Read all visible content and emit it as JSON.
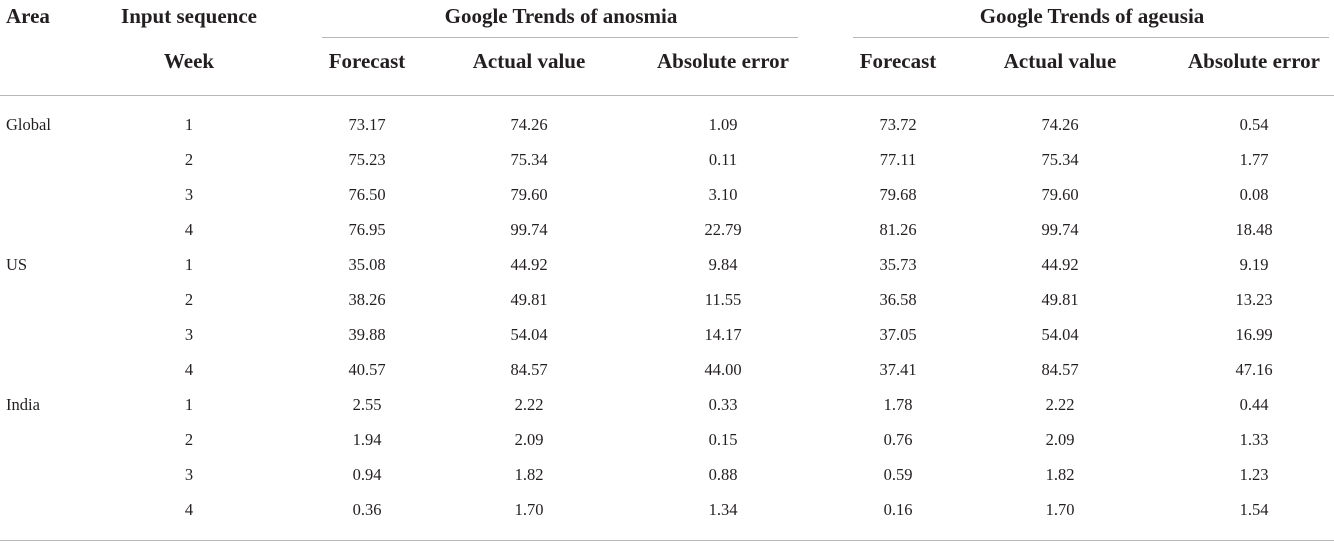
{
  "headers": {
    "area": "Area",
    "input_sequence": "Input sequence",
    "week": "Week",
    "anosmia_group": "Google Trends of anosmia",
    "ageusia_group": "Google Trends of ageusia",
    "forecast": "Forecast",
    "actual_value": "Actual value",
    "absolute_error": "Absolute error"
  },
  "rows": [
    {
      "area": "Global",
      "week": "1",
      "anosmia": [
        "73.17",
        "74.26",
        "1.09"
      ],
      "ageusia": [
        "73.72",
        "74.26",
        "0.54"
      ]
    },
    {
      "area": "",
      "week": "2",
      "anosmia": [
        "75.23",
        "75.34",
        "0.11"
      ],
      "ageusia": [
        "77.11",
        "75.34",
        "1.77"
      ]
    },
    {
      "area": "",
      "week": "3",
      "anosmia": [
        "76.50",
        "79.60",
        "3.10"
      ],
      "ageusia": [
        "79.68",
        "79.60",
        "0.08"
      ]
    },
    {
      "area": "",
      "week": "4",
      "anosmia": [
        "76.95",
        "99.74",
        "22.79"
      ],
      "ageusia": [
        "81.26",
        "99.74",
        "18.48"
      ]
    },
    {
      "area": "US",
      "week": "1",
      "anosmia": [
        "35.08",
        "44.92",
        "9.84"
      ],
      "ageusia": [
        "35.73",
        "44.92",
        "9.19"
      ]
    },
    {
      "area": "",
      "week": "2",
      "anosmia": [
        "38.26",
        "49.81",
        "11.55"
      ],
      "ageusia": [
        "36.58",
        "49.81",
        "13.23"
      ]
    },
    {
      "area": "",
      "week": "3",
      "anosmia": [
        "39.88",
        "54.04",
        "14.17"
      ],
      "ageusia": [
        "37.05",
        "54.04",
        "16.99"
      ]
    },
    {
      "area": "",
      "week": "4",
      "anosmia": [
        "40.57",
        "84.57",
        "44.00"
      ],
      "ageusia": [
        "37.41",
        "84.57",
        "47.16"
      ]
    },
    {
      "area": "India",
      "week": "1",
      "anosmia": [
        "2.55",
        "2.22",
        "0.33"
      ],
      "ageusia": [
        "1.78",
        "2.22",
        "0.44"
      ]
    },
    {
      "area": "",
      "week": "2",
      "anosmia": [
        "1.94",
        "2.09",
        "0.15"
      ],
      "ageusia": [
        "0.76",
        "2.09",
        "1.33"
      ]
    },
    {
      "area": "",
      "week": "3",
      "anosmia": [
        "0.94",
        "1.82",
        "0.88"
      ],
      "ageusia": [
        "0.59",
        "1.82",
        "1.23"
      ]
    },
    {
      "area": "",
      "week": "4",
      "anosmia": [
        "0.36",
        "1.70",
        "1.34"
      ],
      "ageusia": [
        "0.16",
        "1.70",
        "1.54"
      ]
    }
  ]
}
